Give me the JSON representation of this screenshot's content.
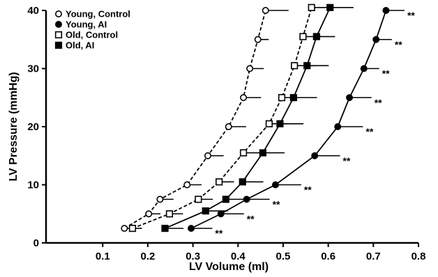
{
  "chart_data": {
    "type": "scatter",
    "title": "",
    "xlabel": "LV Volume (ml)",
    "ylabel": "LV Pressure (mmHg)",
    "xlim": [
      0.1,
      0.8
    ],
    "ylim": [
      0,
      40
    ],
    "x_ticks": [
      "0.1",
      "0.2",
      "0.3",
      "0.4",
      "0.5",
      "0.6",
      "0.7",
      "0.8"
    ],
    "y_ticks": [
      "0",
      "10",
      "20",
      "30",
      "40"
    ],
    "grid": false,
    "legend_position": "top-left",
    "significance_marker": "**",
    "series": [
      {
        "name": "Young, Control",
        "marker": "open-circle",
        "line": "dashed",
        "points": [
          {
            "x": 0.148,
            "y": 2.5,
            "err": 0.023
          },
          {
            "x": 0.202,
            "y": 5.0,
            "err": 0.026
          },
          {
            "x": 0.227,
            "y": 7.5,
            "err": 0.03
          },
          {
            "x": 0.287,
            "y": 10.0,
            "err": 0.032
          },
          {
            "x": 0.333,
            "y": 15.0,
            "err": 0.035
          },
          {
            "x": 0.379,
            "y": 20.0,
            "err": 0.039
          },
          {
            "x": 0.412,
            "y": 25.0,
            "err": 0.039
          },
          {
            "x": 0.426,
            "y": 30.0,
            "err": 0.031
          },
          {
            "x": 0.444,
            "y": 35.0,
            "err": 0.024
          },
          {
            "x": 0.461,
            "y": 40.0,
            "err": 0.051
          }
        ]
      },
      {
        "name": "Young, AI",
        "marker": "filled-circle",
        "line": "solid",
        "points": [
          {
            "x": 0.296,
            "y": 2.5,
            "err": 0.047,
            "sig": true
          },
          {
            "x": 0.362,
            "y": 5.0,
            "err": 0.051,
            "sig": true
          },
          {
            "x": 0.419,
            "y": 7.5,
            "err": 0.051,
            "sig": true
          },
          {
            "x": 0.483,
            "y": 10.0,
            "err": 0.057,
            "sig": true
          },
          {
            "x": 0.57,
            "y": 15.0,
            "err": 0.056,
            "sig": true
          },
          {
            "x": 0.621,
            "y": 20.0,
            "err": 0.056,
            "sig": true
          },
          {
            "x": 0.647,
            "y": 25.0,
            "err": 0.049,
            "sig": true
          },
          {
            "x": 0.679,
            "y": 30.0,
            "err": 0.034,
            "sig": true
          },
          {
            "x": 0.706,
            "y": 35.0,
            "err": 0.035,
            "sig": true
          },
          {
            "x": 0.728,
            "y": 40.0,
            "err": 0.041,
            "sig": true
          }
        ]
      },
      {
        "name": "Old, Control",
        "marker": "open-square",
        "line": "dashed",
        "points": [
          {
            "x": 0.166,
            "y": 2.5,
            "err": 0.021
          },
          {
            "x": 0.248,
            "y": 5.0,
            "err": 0.03
          },
          {
            "x": 0.312,
            "y": 7.5,
            "err": 0.032
          },
          {
            "x": 0.358,
            "y": 10.5,
            "err": 0.033
          },
          {
            "x": 0.412,
            "y": 15.5,
            "err": 0.043
          },
          {
            "x": 0.469,
            "y": 20.5,
            "err": 0.044
          },
          {
            "x": 0.497,
            "y": 25.0,
            "err": 0.048
          },
          {
            "x": 0.525,
            "y": 30.5,
            "err": 0.046
          },
          {
            "x": 0.544,
            "y": 35.5,
            "err": 0.04
          },
          {
            "x": 0.563,
            "y": 40.5,
            "err": 0.048
          }
        ]
      },
      {
        "name": "Old, AI",
        "marker": "filled-square",
        "line": "solid",
        "points": [
          {
            "x": 0.238,
            "y": 2.5,
            "err": 0.041
          },
          {
            "x": 0.328,
            "y": 5.5,
            "err": 0.049
          },
          {
            "x": 0.373,
            "y": 7.5,
            "err": 0.055
          },
          {
            "x": 0.41,
            "y": 10.5,
            "err": 0.046
          },
          {
            "x": 0.455,
            "y": 15.5,
            "err": 0.048
          },
          {
            "x": 0.493,
            "y": 20.5,
            "err": 0.052
          },
          {
            "x": 0.523,
            "y": 25.0,
            "err": 0.052
          },
          {
            "x": 0.553,
            "y": 30.5,
            "err": 0.048
          },
          {
            "x": 0.574,
            "y": 35.5,
            "err": 0.041
          },
          {
            "x": 0.604,
            "y": 40.5,
            "err": 0.052
          }
        ]
      }
    ]
  }
}
